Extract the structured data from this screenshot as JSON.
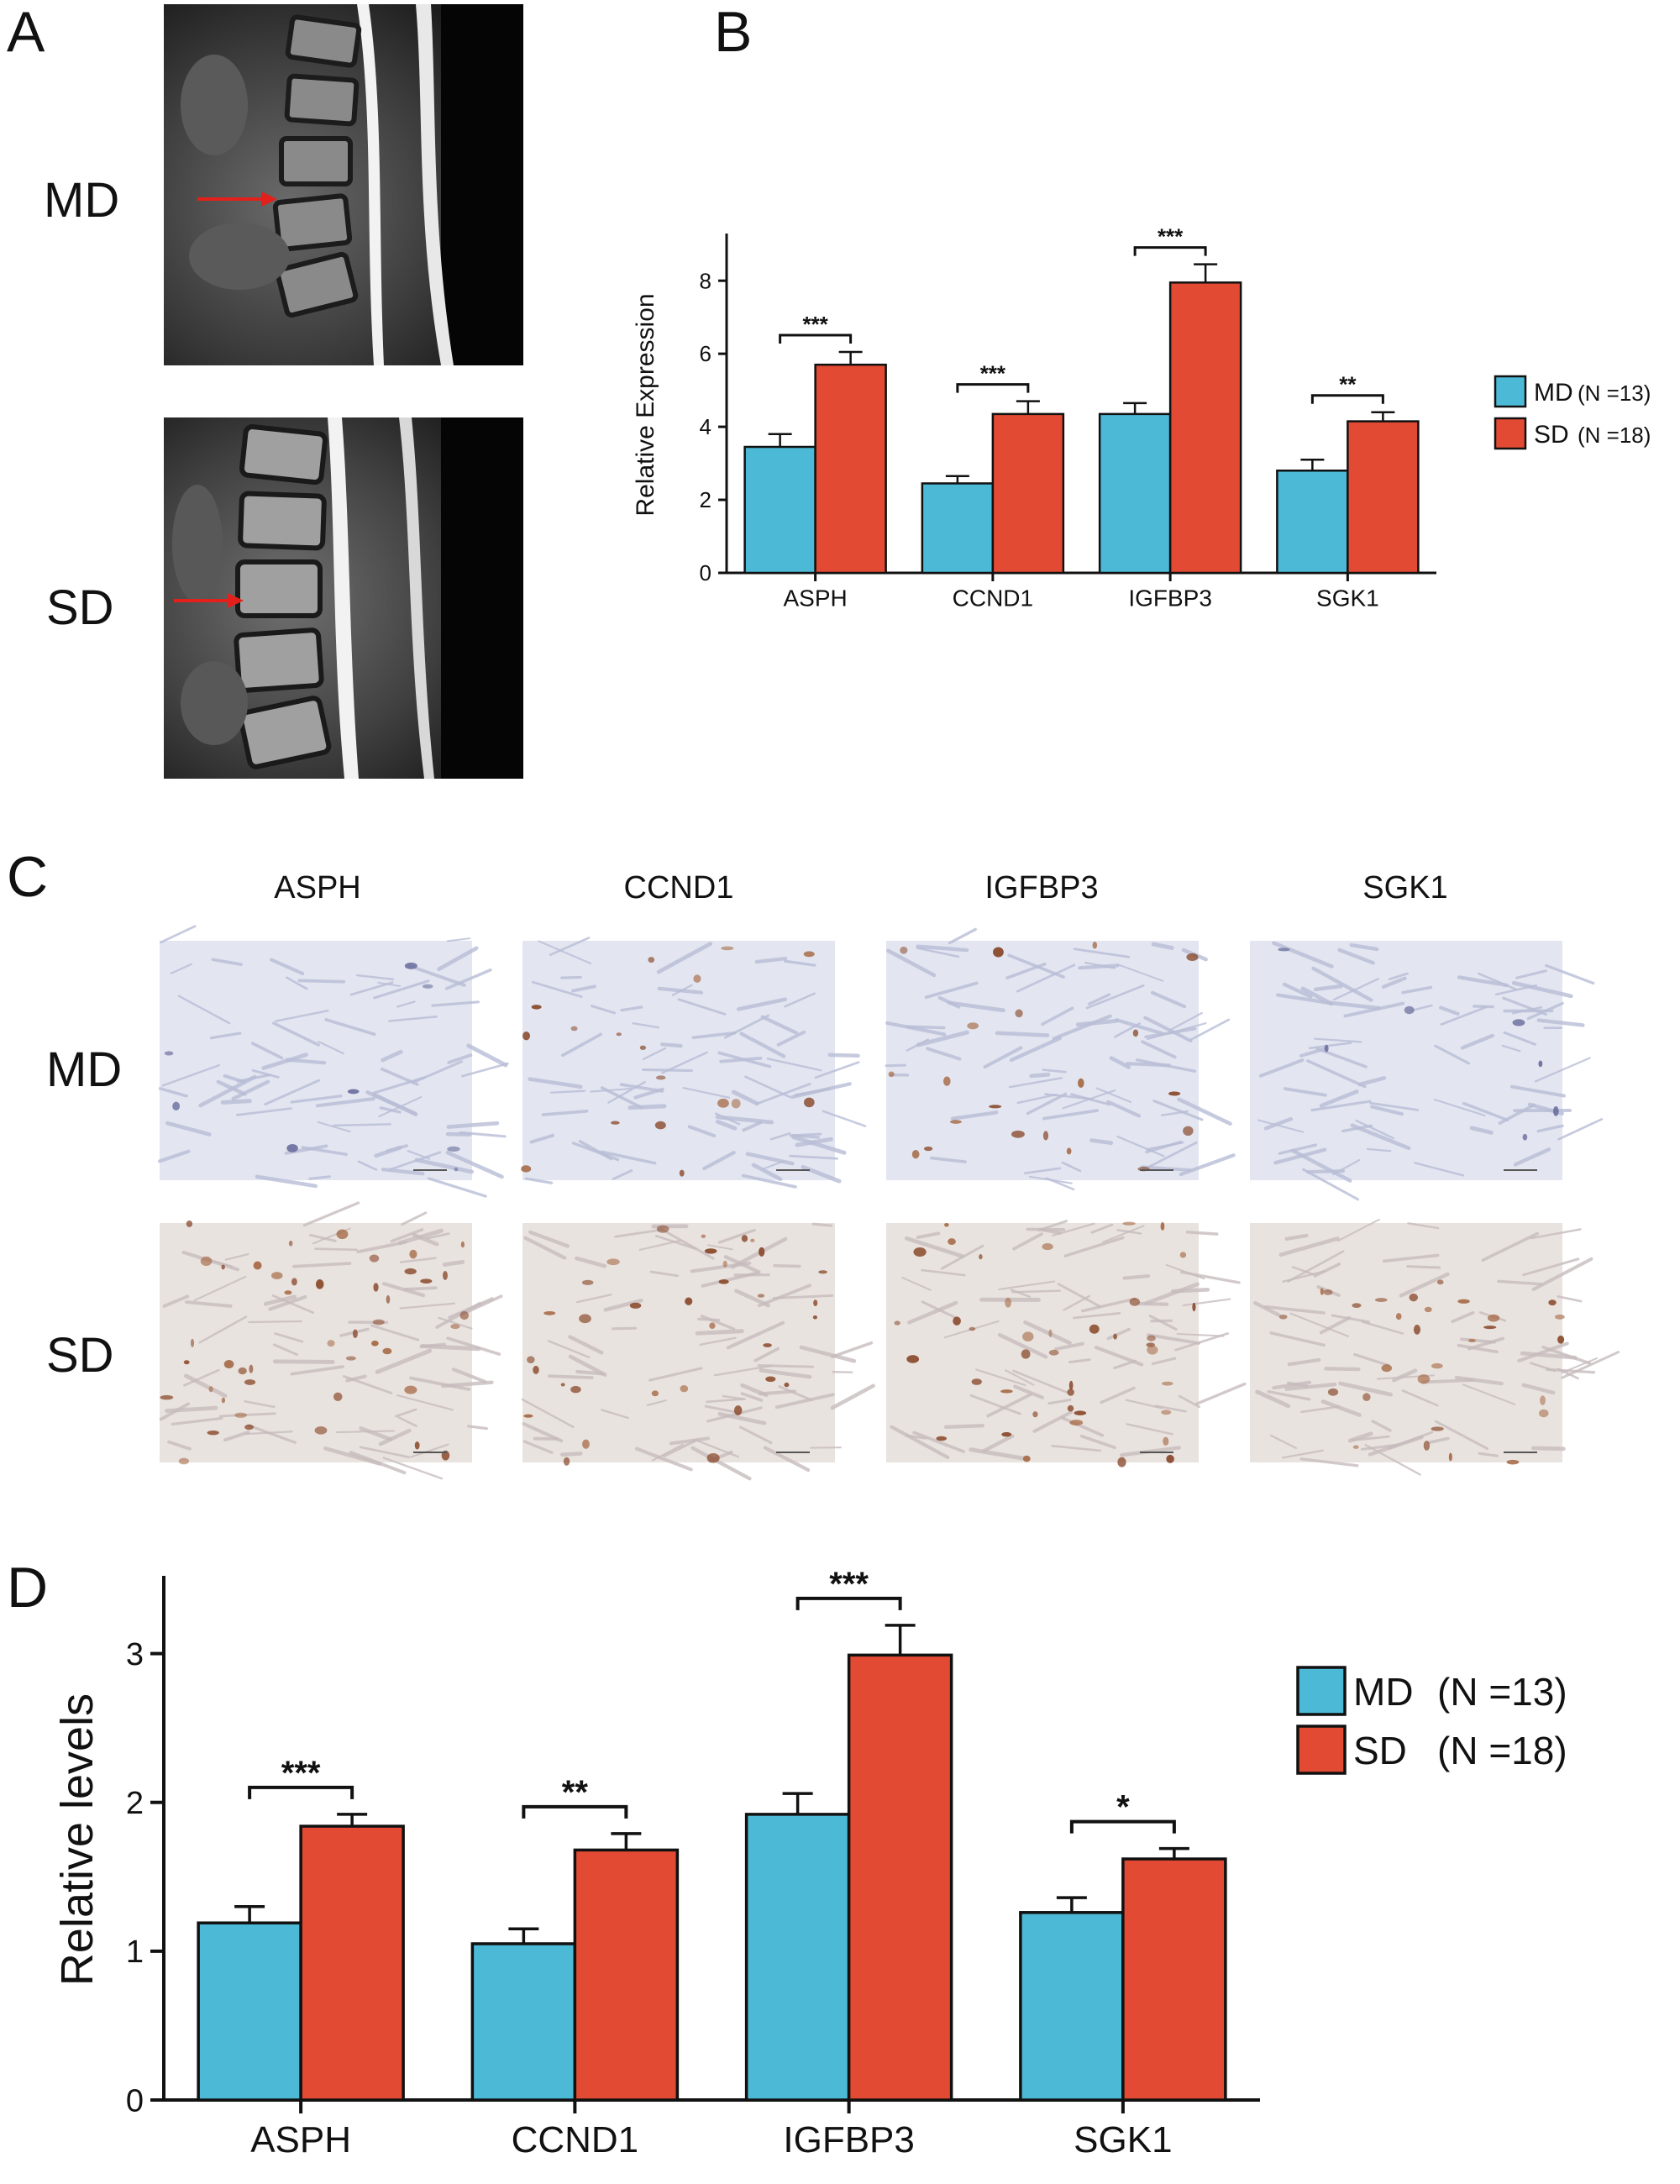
{
  "panels": {
    "a": {
      "letter": "A",
      "row_labels": [
        "MD",
        "SD"
      ]
    },
    "b": {
      "letter": "B"
    },
    "c": {
      "letter": "C",
      "col_labels": [
        "ASPH",
        "CCND1",
        "IGFBP3",
        "SGK1"
      ],
      "row_labels": [
        "MD",
        "SD"
      ],
      "stain_level": {
        "MD": [
          0.05,
          0.25,
          0.3,
          0.03
        ],
        "SD": [
          0.85,
          0.6,
          0.75,
          0.5
        ]
      }
    },
    "d": {
      "letter": "D"
    }
  },
  "colors": {
    "md": "#4cbad6",
    "sd": "#e24a33",
    "arrow": "#e3201b"
  },
  "chart_data": [
    {
      "id": "B",
      "type": "bar",
      "categories": [
        "ASPH",
        "CCND1",
        "IGFBP3",
        "SGK1"
      ],
      "series": [
        {
          "name": "MD",
          "values": [
            3.45,
            2.45,
            4.35,
            2.8
          ],
          "errors": [
            0.35,
            0.2,
            0.3,
            0.3
          ]
        },
        {
          "name": "SD",
          "values": [
            5.7,
            4.35,
            7.95,
            4.15
          ],
          "errors": [
            0.35,
            0.35,
            0.5,
            0.25
          ]
        }
      ],
      "legend": [
        {
          "name": "MD",
          "n": "(N =13)"
        },
        {
          "name": "SD",
          "n": "(N =18)"
        }
      ],
      "significance": [
        "***",
        "***",
        "***",
        "**"
      ],
      "ylabel": "Relative Expression",
      "ylim": [
        0,
        9.2
      ],
      "yticks": [
        0,
        2,
        4,
        6,
        8
      ],
      "legend_position": "right"
    },
    {
      "id": "D",
      "type": "bar",
      "categories": [
        "ASPH",
        "CCND1",
        "IGFBP3",
        "SGK1"
      ],
      "series": [
        {
          "name": "MD",
          "values": [
            1.19,
            1.05,
            1.92,
            1.26
          ],
          "errors": [
            0.11,
            0.1,
            0.14,
            0.1
          ]
        },
        {
          "name": "SD",
          "values": [
            1.84,
            1.68,
            2.99,
            1.62
          ],
          "errors": [
            0.08,
            0.11,
            0.2,
            0.07
          ]
        }
      ],
      "legend": [
        {
          "name": "MD",
          "n": "(N =13)"
        },
        {
          "name": "SD",
          "n": "(N =18)"
        }
      ],
      "significance": [
        "***",
        "**",
        "***",
        "*"
      ],
      "ylabel": "Relative levels",
      "ylim": [
        0,
        3.5
      ],
      "yticks": [
        0,
        1,
        2,
        3
      ],
      "legend_position": "right"
    }
  ]
}
